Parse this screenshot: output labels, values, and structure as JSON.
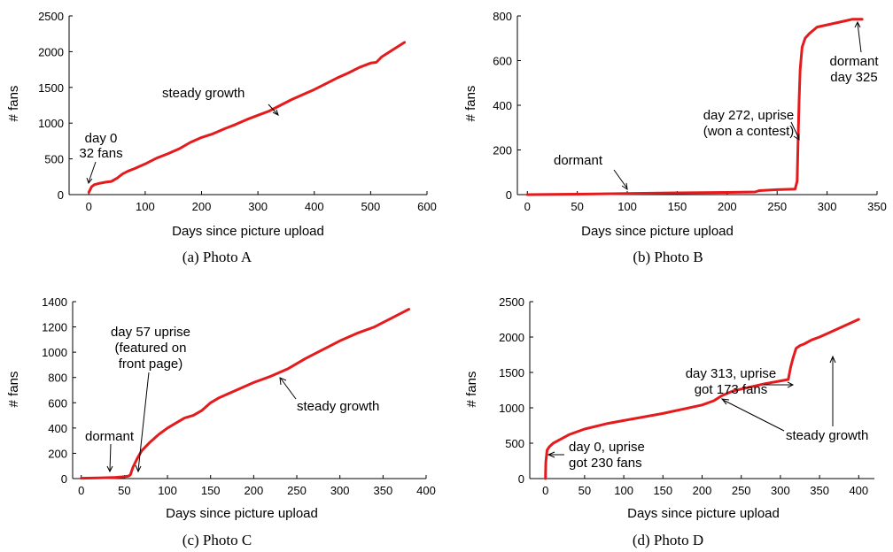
{
  "chart_data": [
    {
      "type": "line",
      "caption": "(a)  Photo A",
      "xlabel": "Days since picture upload",
      "ylabel": "# fans",
      "xlim": [
        -35,
        600
      ],
      "ylim": [
        0,
        2500
      ],
      "xticks": [
        0,
        100,
        200,
        300,
        400,
        500,
        600
      ],
      "yticks": [
        0,
        500,
        1000,
        1500,
        2000,
        2500
      ],
      "series": [
        {
          "color": "#e41a1c",
          "x": [
            0,
            5,
            10,
            20,
            30,
            40,
            50,
            60,
            70,
            80,
            100,
            120,
            140,
            160,
            180,
            200,
            220,
            240,
            260,
            280,
            300,
            320,
            340,
            360,
            380,
            400,
            420,
            440,
            460,
            480,
            500,
            510,
            520,
            540,
            560
          ],
          "y": [
            32,
            110,
            140,
            160,
            175,
            185,
            230,
            290,
            330,
            360,
            430,
            510,
            570,
            640,
            730,
            800,
            850,
            920,
            980,
            1050,
            1110,
            1170,
            1250,
            1330,
            1400,
            1470,
            1550,
            1630,
            1700,
            1780,
            1840,
            1850,
            1930,
            2030,
            2130
          ]
        }
      ],
      "annotations": [
        {
          "lines": [
            "steady growth"
          ],
          "x": 340,
          "y": 1300
        },
        {
          "lines": [
            "day 0",
            "32 fans"
          ],
          "x": 0,
          "y": 32
        }
      ]
    },
    {
      "type": "line",
      "caption": "(b)  Photo B",
      "xlabel": "Days since picture upload",
      "ylabel": "# fans",
      "xlim": [
        -10,
        350
      ],
      "ylim": [
        0,
        800
      ],
      "xticks": [
        0,
        50,
        100,
        150,
        200,
        250,
        300,
        350
      ],
      "yticks": [
        0,
        200,
        400,
        600,
        800
      ],
      "series": [
        {
          "color": "#e41a1c",
          "x": [
            0,
            50,
            100,
            150,
            200,
            228,
            232,
            250,
            268,
            270,
            271,
            272,
            273,
            275,
            278,
            282,
            290,
            300,
            310,
            320,
            325,
            335
          ],
          "y": [
            0,
            2,
            5,
            8,
            10,
            12,
            18,
            22,
            25,
            60,
            250,
            420,
            560,
            660,
            700,
            720,
            750,
            760,
            770,
            780,
            785,
            785
          ]
        }
      ],
      "annotations": [
        {
          "lines": [
            "dormant"
          ],
          "x": 100,
          "y": 5
        },
        {
          "lines": [
            "day 272, uprise",
            "(won a contest)"
          ],
          "x": 271,
          "y": 230
        },
        {
          "lines": [
            "dormant",
            "day 325"
          ],
          "x": 325,
          "y": 785
        }
      ]
    },
    {
      "type": "line",
      "caption": "(c)  Photo C",
      "xlabel": "Days since picture upload",
      "ylabel": "# fans",
      "xlim": [
        -10,
        400
      ],
      "ylim": [
        0,
        1400
      ],
      "xticks": [
        0,
        50,
        100,
        150,
        200,
        250,
        300,
        350,
        400
      ],
      "yticks": [
        0,
        200,
        400,
        600,
        800,
        1000,
        1200,
        1400
      ],
      "series": [
        {
          "color": "#e41a1c",
          "x": [
            0,
            20,
            40,
            50,
            55,
            57,
            60,
            65,
            70,
            80,
            90,
            100,
            110,
            120,
            130,
            140,
            150,
            160,
            180,
            200,
            220,
            240,
            260,
            280,
            300,
            320,
            340,
            360,
            380
          ],
          "y": [
            3,
            5,
            10,
            15,
            20,
            30,
            90,
            160,
            220,
            290,
            350,
            400,
            440,
            480,
            500,
            540,
            600,
            640,
            700,
            760,
            810,
            870,
            950,
            1020,
            1090,
            1150,
            1200,
            1270,
            1340
          ]
        }
      ],
      "annotations": [
        {
          "lines": [
            "dormant"
          ],
          "x": 20,
          "y": 5
        },
        {
          "lines": [
            "day 57 uprise",
            "(featured on",
            "front page)"
          ],
          "x": 55,
          "y": 20
        },
        {
          "lines": [
            "steady growth"
          ],
          "x": 220,
          "y": 830
        }
      ]
    },
    {
      "type": "line",
      "caption": "(d)  Photo D",
      "xlabel": "Days since picture upload",
      "ylabel": "# fans",
      "xlim": [
        -20,
        420
      ],
      "ylim": [
        0,
        2500
      ],
      "xticks": [
        0,
        50,
        100,
        150,
        200,
        250,
        300,
        350,
        400
      ],
      "yticks": [
        0,
        500,
        1000,
        1500,
        2000,
        2500
      ],
      "series": [
        {
          "color": "#e41a1c",
          "x": [
            0,
            0.5,
            2,
            5,
            10,
            20,
            30,
            50,
            80,
            100,
            150,
            200,
            215,
            225,
            240,
            260,
            280,
            300,
            310,
            313,
            316,
            320,
            325,
            330,
            340,
            350,
            360,
            380,
            400
          ],
          "y": [
            0,
            230,
            400,
            450,
            500,
            560,
            620,
            700,
            780,
            820,
            920,
            1040,
            1100,
            1170,
            1240,
            1290,
            1340,
            1380,
            1400,
            1570,
            1700,
            1840,
            1880,
            1900,
            1960,
            2000,
            2050,
            2150,
            2250
          ]
        }
      ],
      "annotations": [
        {
          "lines": [
            "day 313, uprise",
            "got 173 fans"
          ],
          "x": 312,
          "y": 1650
        },
        {
          "lines": [
            "steady growth"
          ],
          "x": 220,
          "y": 1110
        },
        {
          "lines": [
            "day 0, uprise",
            "got 230 fans"
          ],
          "x": 2,
          "y": 320
        }
      ]
    }
  ]
}
